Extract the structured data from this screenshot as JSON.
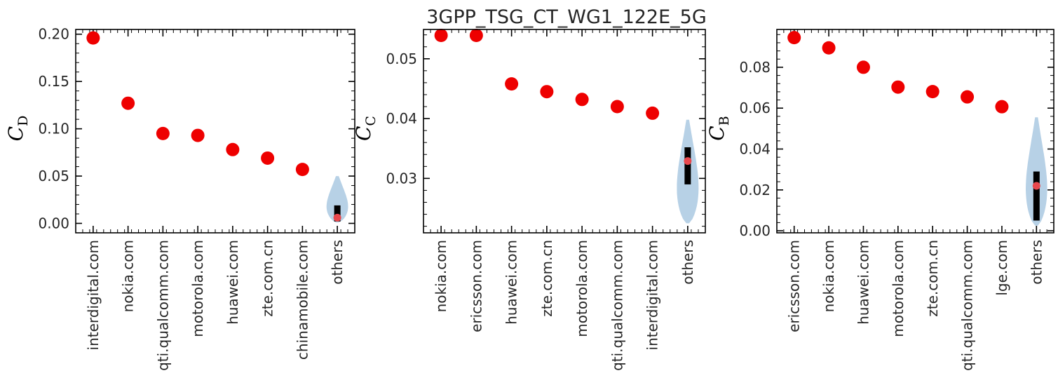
{
  "figure_title": "3GPP_TSG_CT_WG1_122E_5G",
  "colors": {
    "point": "#ee0000",
    "violin_fill": "#b7d1e6",
    "box": "#000000",
    "median": "#e8484d",
    "axis": "#000000"
  },
  "chart_data": [
    {
      "type": "scatter",
      "ylabel": {
        "symbol": "C",
        "subscript": "D"
      },
      "ylim": [
        -0.01,
        0.205
      ],
      "yticks": [
        0.0,
        0.05,
        0.1,
        0.15,
        0.2
      ],
      "ytick_labels": [
        "0.00",
        "0.05",
        "0.10",
        "0.15",
        "0.20"
      ],
      "categories": [
        "interdigital.com",
        "nokia.com",
        "qti.qualcomm.com",
        "motorola.com",
        "huawei.com",
        "zte.com.cn",
        "chinamobile.com",
        "others"
      ],
      "values": [
        0.196,
        0.127,
        0.095,
        0.093,
        0.078,
        0.069,
        0.057,
        null
      ],
      "others_distribution": {
        "type": "violin",
        "min": 0.001,
        "max": 0.05,
        "q1": 0.002,
        "q3": 0.019,
        "median": 0.006
      }
    },
    {
      "type": "scatter",
      "ylabel": {
        "symbol": "C",
        "subscript": "C"
      },
      "ylim": [
        0.0209,
        0.0549
      ],
      "yticks": [
        0.03,
        0.04,
        0.05
      ],
      "ytick_labels": [
        "0.03",
        "0.04",
        "0.05"
      ],
      "categories": [
        "nokia.com",
        "ericsson.com",
        "huawei.com",
        "zte.com.cn",
        "motorola.com",
        "qti.qualcomm.com",
        "interdigital.com",
        "others"
      ],
      "values": [
        0.0539,
        0.0539,
        0.0458,
        0.0445,
        0.0432,
        0.042,
        0.0409,
        null
      ],
      "others_distribution": {
        "type": "violin",
        "min": 0.0225,
        "max": 0.0398,
        "q1": 0.029,
        "q3": 0.0352,
        "median": 0.0329
      }
    },
    {
      "type": "scatter",
      "ylabel": {
        "symbol": "C",
        "subscript": "B"
      },
      "ylim": [
        -0.001,
        0.0985
      ],
      "yticks": [
        0.0,
        0.02,
        0.04,
        0.06,
        0.08
      ],
      "ytick_labels": [
        "0.00",
        "0.02",
        "0.04",
        "0.06",
        "0.08"
      ],
      "categories": [
        "ericsson.com",
        "nokia.com",
        "huawei.com",
        "motorola.com",
        "zte.com.cn",
        "qti.qualcomm.com",
        "lge.com",
        "others"
      ],
      "values": [
        0.0945,
        0.0895,
        0.08,
        0.0703,
        0.0681,
        0.0655,
        0.0607,
        null
      ],
      "others_distribution": {
        "type": "violin",
        "min": 0.0025,
        "max": 0.0555,
        "q1": 0.005,
        "q3": 0.029,
        "median": 0.022
      }
    }
  ]
}
